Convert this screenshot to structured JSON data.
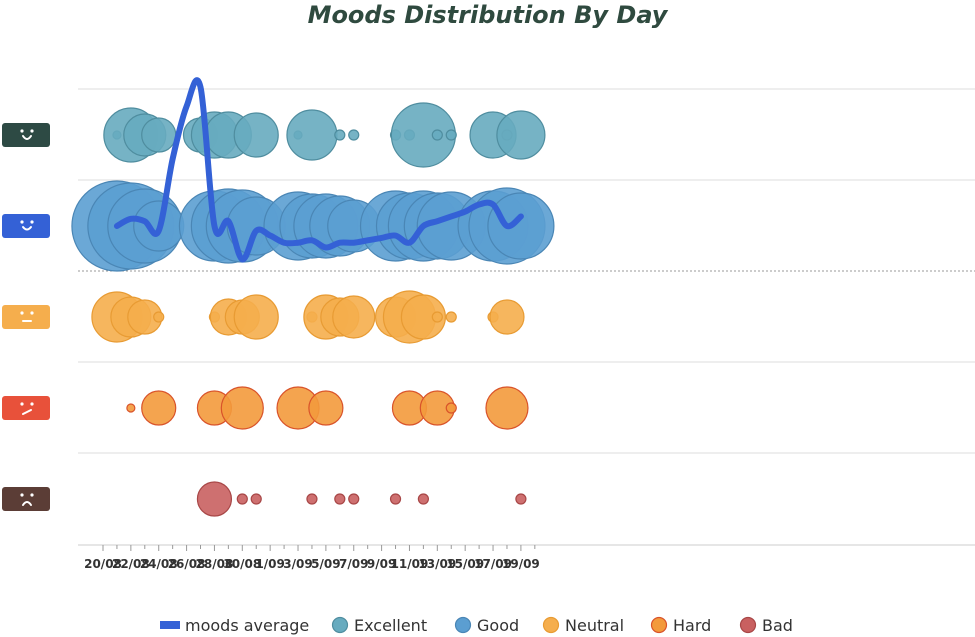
{
  "chart_data": {
    "type": "scatter",
    "title": "Moods Distribution By Day",
    "xlabel": "",
    "ylabel": "",
    "x_tick_labels": [
      "20/08",
      "22/08",
      "24/08",
      "26/08",
      "28/08",
      "30/08",
      "1/09",
      "3/09",
      "5/09",
      "7/09",
      "9/09",
      "11/09",
      "13/09",
      "15/09",
      "17/09",
      "19/09"
    ],
    "mood_rows": [
      "Excellent",
      "Good",
      "Neutral",
      "Hard",
      "Bad"
    ],
    "icons": [
      "excellent-face-icon",
      "good-face-icon",
      "neutral-face-icon",
      "hard-face-icon",
      "bad-face-icon"
    ],
    "colors": {
      "Excellent": "#67abbf",
      "Good": "#5b9ed1",
      "Neutral": "#f5ae4d",
      "Hard": "#f39a3c",
      "Bad": "#c96060",
      "average": "#3461d6"
    },
    "series": [
      {
        "name": "Excellent",
        "points": [
          {
            "date": "21/08",
            "r": 4
          },
          {
            "date": "22/08",
            "r": 27
          },
          {
            "date": "23/08",
            "r": 21
          },
          {
            "date": "24/08",
            "r": 17
          },
          {
            "date": "27/08",
            "r": 17
          },
          {
            "date": "28/08",
            "r": 23
          },
          {
            "date": "29/08",
            "r": 23
          },
          {
            "date": "31/08",
            "r": 22
          },
          {
            "date": "3/09",
            "r": 4
          },
          {
            "date": "4/09",
            "r": 25
          },
          {
            "date": "6/09",
            "r": 5
          },
          {
            "date": "7/09",
            "r": 5
          },
          {
            "date": "10/09",
            "r": 5
          },
          {
            "date": "11/09",
            "r": 5
          },
          {
            "date": "12/09",
            "r": 32
          },
          {
            "date": "13/09",
            "r": 5
          },
          {
            "date": "14/09",
            "r": 5
          },
          {
            "date": "17/09",
            "r": 23
          },
          {
            "date": "18/09",
            "r": 5
          },
          {
            "date": "19/09",
            "r": 24
          }
        ]
      },
      {
        "name": "Good",
        "points": [
          {
            "date": "21/08",
            "r": 45
          },
          {
            "date": "22/08",
            "r": 43
          },
          {
            "date": "23/08",
            "r": 37
          },
          {
            "date": "24/08",
            "r": 25
          },
          {
            "date": "28/08",
            "r": 35
          },
          {
            "date": "29/08",
            "r": 37
          },
          {
            "date": "30/08",
            "r": 36
          },
          {
            "date": "31/08",
            "r": 29
          },
          {
            "date": "3/09",
            "r": 34
          },
          {
            "date": "4/09",
            "r": 32
          },
          {
            "date": "5/09",
            "r": 32
          },
          {
            "date": "6/09",
            "r": 30
          },
          {
            "date": "7/09",
            "r": 26
          },
          {
            "date": "10/09",
            "r": 35
          },
          {
            "date": "11/09",
            "r": 33
          },
          {
            "date": "12/09",
            "r": 35
          },
          {
            "date": "13/09",
            "r": 33
          },
          {
            "date": "14/09",
            "r": 34
          },
          {
            "date": "17/09",
            "r": 35
          },
          {
            "date": "18/09",
            "r": 38
          },
          {
            "date": "19/09",
            "r": 33
          }
        ]
      },
      {
        "name": "Neutral",
        "points": [
          {
            "date": "21/08",
            "r": 25
          },
          {
            "date": "22/08",
            "r": 20
          },
          {
            "date": "23/08",
            "r": 17
          },
          {
            "date": "24/08",
            "r": 5
          },
          {
            "date": "28/08",
            "r": 5
          },
          {
            "date": "29/08",
            "r": 18
          },
          {
            "date": "30/08",
            "r": 17
          },
          {
            "date": "31/08",
            "r": 22
          },
          {
            "date": "4/09",
            "r": 5
          },
          {
            "date": "5/09",
            "r": 22
          },
          {
            "date": "6/09",
            "r": 19
          },
          {
            "date": "7/09",
            "r": 21
          },
          {
            "date": "10/09",
            "r": 20
          },
          {
            "date": "11/09",
            "r": 26
          },
          {
            "date": "12/09",
            "r": 22
          },
          {
            "date": "13/09",
            "r": 5
          },
          {
            "date": "14/09",
            "r": 5
          },
          {
            "date": "17/09",
            "r": 5
          },
          {
            "date": "18/09",
            "r": 17
          }
        ]
      },
      {
        "name": "Hard",
        "points": [
          {
            "date": "22/08",
            "r": 4
          },
          {
            "date": "24/08",
            "r": 17
          },
          {
            "date": "28/08",
            "r": 17
          },
          {
            "date": "30/08",
            "r": 21
          },
          {
            "date": "3/09",
            "r": 21
          },
          {
            "date": "5/09",
            "r": 17
          },
          {
            "date": "11/09",
            "r": 17
          },
          {
            "date": "13/09",
            "r": 17
          },
          {
            "date": "14/09",
            "r": 5
          },
          {
            "date": "18/09",
            "r": 21
          }
        ]
      },
      {
        "name": "Bad",
        "points": [
          {
            "date": "28/08",
            "r": 17
          },
          {
            "date": "30/08",
            "r": 5
          },
          {
            "date": "31/08",
            "r": 5
          },
          {
            "date": "4/09",
            "r": 5
          },
          {
            "date": "6/09",
            "r": 5
          },
          {
            "date": "7/09",
            "r": 5
          },
          {
            "date": "10/09",
            "r": 5
          },
          {
            "date": "12/09",
            "r": 5
          },
          {
            "date": "19/09",
            "r": 5
          }
        ]
      }
    ],
    "average": {
      "name": "moods average",
      "points": [
        {
          "date": "21/08",
          "mood": "Good",
          "offset": 0.0
        },
        {
          "date": "22/08",
          "mood": "Good",
          "offset": 0.15
        },
        {
          "date": "23/08",
          "mood": "Good",
          "offset": 0.1
        },
        {
          "date": "24/08",
          "mood": "Good",
          "offset": -0.1
        },
        {
          "date": "25/08",
          "mood": "Excellent",
          "offset": -0.5
        },
        {
          "date": "26/08",
          "mood": "Excellent",
          "offset": 0.6
        },
        {
          "date": "27/08",
          "mood": "Excellent",
          "offset": 1.0
        },
        {
          "date": "28/08",
          "mood": "Good",
          "offset": 0.0
        },
        {
          "date": "29/08",
          "mood": "Good",
          "offset": 0.1
        },
        {
          "date": "30/08",
          "mood": "Good",
          "offset": -0.7
        },
        {
          "date": "31/08",
          "mood": "Good",
          "offset": -0.1
        },
        {
          "date": "1/09",
          "mood": "Good",
          "offset": -0.2
        },
        {
          "date": "2/09",
          "mood": "Good",
          "offset": -0.35
        },
        {
          "date": "3/09",
          "mood": "Good",
          "offset": -0.35
        },
        {
          "date": "4/09",
          "mood": "Good",
          "offset": -0.3
        },
        {
          "date": "5/09",
          "mood": "Good",
          "offset": -0.45
        },
        {
          "date": "6/09",
          "mood": "Good",
          "offset": -0.35
        },
        {
          "date": "7/09",
          "mood": "Good",
          "offset": -0.35
        },
        {
          "date": "8/09",
          "mood": "Good",
          "offset": -0.3
        },
        {
          "date": "9/09",
          "mood": "Good",
          "offset": -0.25
        },
        {
          "date": "10/09",
          "mood": "Good",
          "offset": -0.2
        },
        {
          "date": "11/09",
          "mood": "Good",
          "offset": -0.35
        },
        {
          "date": "12/09",
          "mood": "Good",
          "offset": 0.0
        },
        {
          "date": "13/09",
          "mood": "Good",
          "offset": 0.1
        },
        {
          "date": "14/09",
          "mood": "Good",
          "offset": 0.2
        },
        {
          "date": "15/09",
          "mood": "Good",
          "offset": 0.3
        },
        {
          "date": "16/09",
          "mood": "Good",
          "offset": 0.45
        },
        {
          "date": "17/09",
          "mood": "Good",
          "offset": 0.45
        },
        {
          "date": "18/09",
          "mood": "Good",
          "offset": 0.0
        },
        {
          "date": "19/09",
          "mood": "Good",
          "offset": 0.2
        }
      ]
    },
    "legend": {
      "placement": "bottom",
      "items": [
        "moods average",
        "Excellent",
        "Good",
        "Neutral",
        "Hard",
        "Bad"
      ]
    },
    "grid": true
  }
}
